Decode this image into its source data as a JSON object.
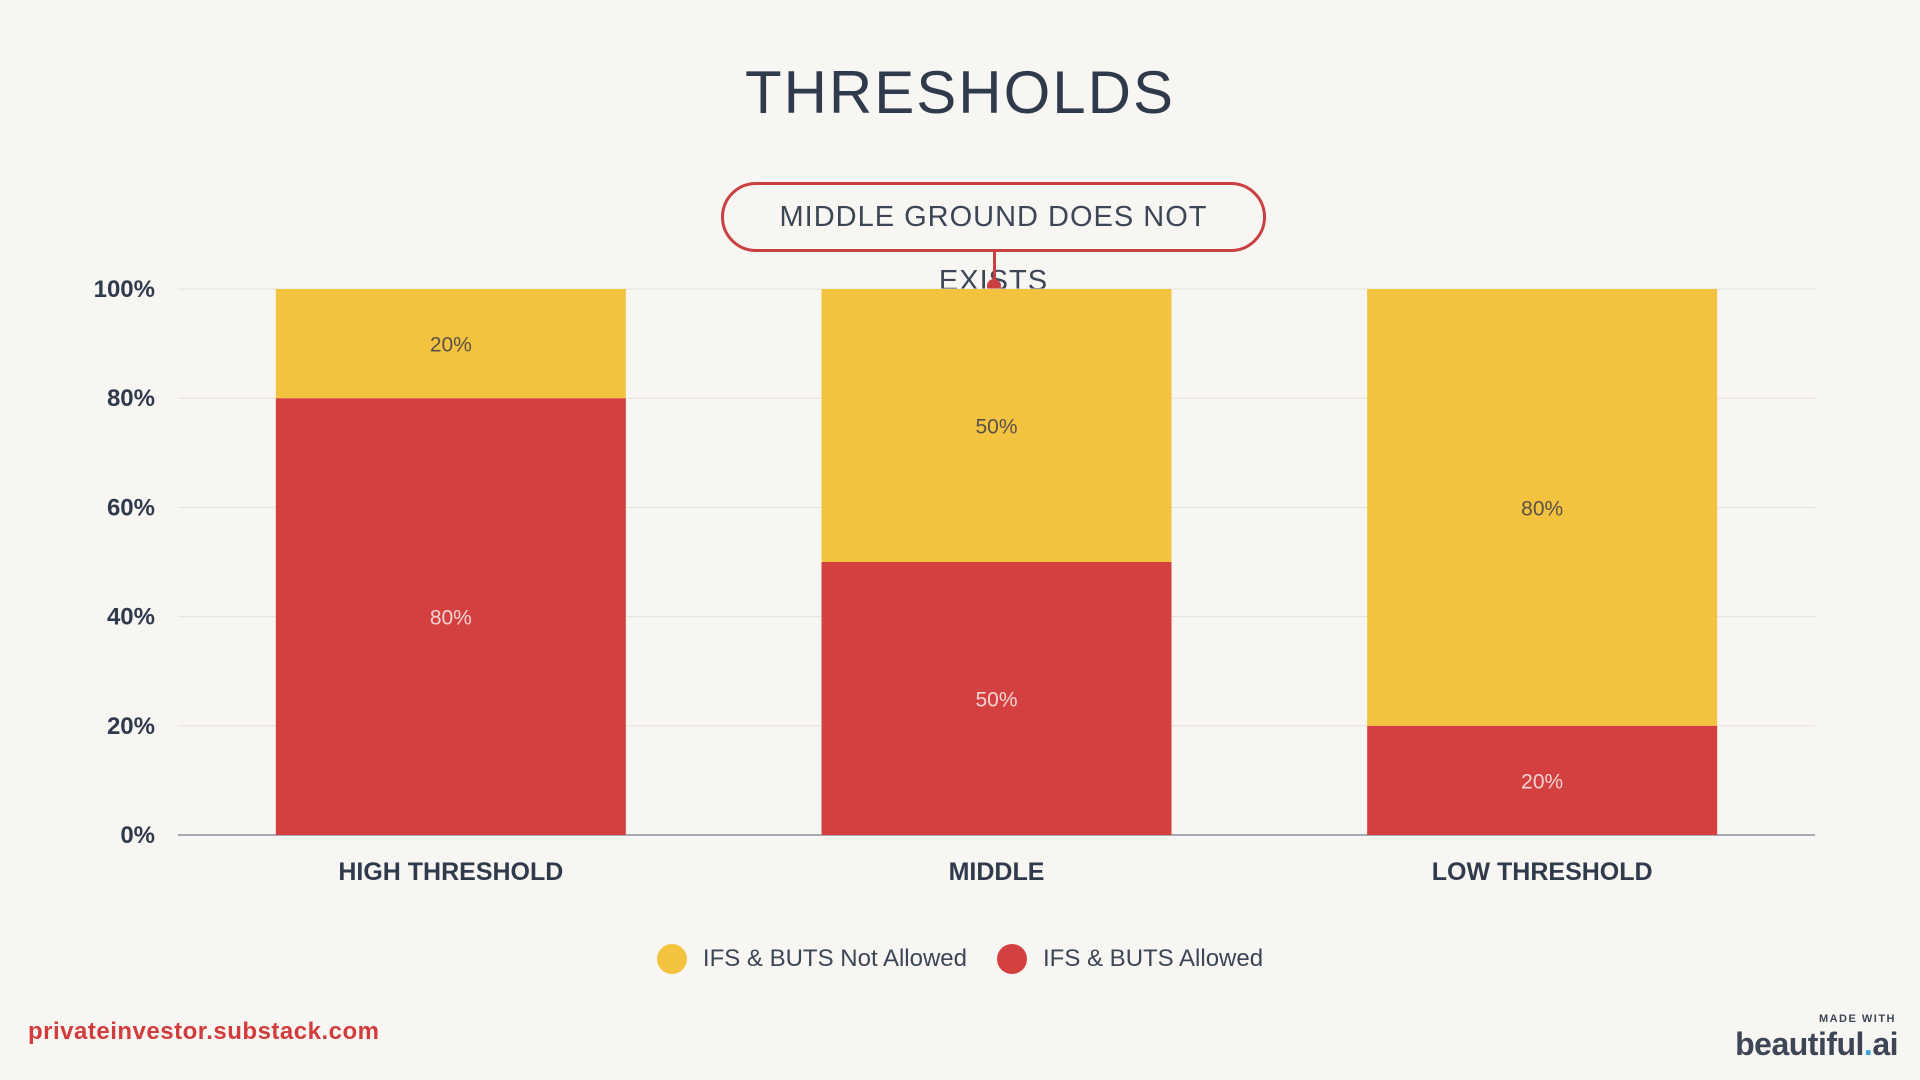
{
  "title": "THRESHOLDS",
  "callout": "MIDDLE GROUND DOES NOT EXISTS",
  "footer": {
    "link": "privateinvestor.substack.com",
    "made_with": "MADE WITH",
    "brand_main": "beautiful",
    "brand_dot": ".",
    "brand_suffix": "ai"
  },
  "legend": [
    {
      "label": "IFS & BUTS Not Allowed",
      "color": "#f3c340"
    },
    {
      "label": "IFS & BUTS Allowed",
      "color": "#d44040"
    }
  ],
  "chart_data": {
    "type": "bar",
    "stacked": true,
    "title": "THRESHOLDS",
    "categories": [
      "HIGH THRESHOLD",
      "MIDDLE",
      "LOW THRESHOLD"
    ],
    "series": [
      {
        "name": "IFS & BUTS Allowed",
        "values": [
          80,
          50,
          20
        ],
        "color": "#d44040",
        "labels": [
          "80%",
          "50%",
          "20%"
        ]
      },
      {
        "name": "IFS & BUTS Not Allowed",
        "values": [
          20,
          50,
          80
        ],
        "color": "#f3c340",
        "labels": [
          "20%",
          "50%",
          "80%"
        ]
      }
    ],
    "ylim": [
      0,
      100
    ],
    "yticks": [
      "0%",
      "20%",
      "40%",
      "60%",
      "80%",
      "100%"
    ],
    "grid": true,
    "legend_position": "bottom"
  }
}
